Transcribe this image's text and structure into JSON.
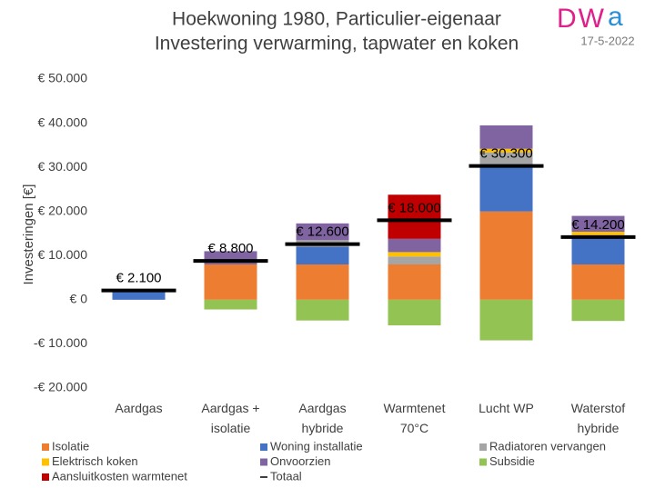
{
  "chart_data": {
    "type": "stacked_bar",
    "title": [
      "Hoekwoning 1980, Particulier-eigenaar",
      "Investering verwarming, tapwater en koken"
    ],
    "logo": [
      "DW",
      "a"
    ],
    "date": "17-5-2022",
    "y_label": "Investeringen [€]",
    "categories": [
      "Aardgas",
      "Aardgas + isolatie",
      "Aardgas hybride",
      "Warmtenet 70°C",
      "Lucht WP",
      "Waterstof hybride"
    ],
    "series": [
      {
        "name": "Isolatie",
        "color": "#ed7d31",
        "values": [
          0,
          8000,
          8000,
          8000,
          20000,
          8000
        ]
      },
      {
        "name": "Woning installatie",
        "color": "#4472c4",
        "values": [
          2100,
          0,
          4000,
          0,
          10000,
          6200
        ]
      },
      {
        "name": "Radiatoren vervangen",
        "color": "#a5a5a5",
        "values": [
          0,
          0,
          1500,
          1800,
          3400,
          0
        ]
      },
      {
        "name": "Elektrisch koken",
        "color": "#ffc000",
        "values": [
          0,
          0,
          0,
          1000,
          800,
          1200
        ]
      },
      {
        "name": "Onvoorzien",
        "color": "#8064a2",
        "values": [
          0,
          3000,
          3800,
          3000,
          5300,
          3600
        ]
      },
      {
        "name": "Subsidie",
        "color": "#92c353",
        "values": [
          0,
          -2200,
          -4700,
          -5800,
          -9200,
          -4800
        ]
      },
      {
        "name": "Aansluitkosten warmtenet",
        "color": "#c00000",
        "values": [
          0,
          0,
          0,
          10000,
          0,
          0
        ]
      }
    ],
    "total": {
      "name": "Totaal",
      "color": "#000000",
      "values": [
        2100,
        8800,
        12600,
        18000,
        30300,
        14200
      ],
      "value_labels": [
        "€ 2.100",
        "€ 8.800",
        "€ 12.600",
        "€ 18.000",
        "€ 30.300",
        "€ 14.200"
      ]
    },
    "ylim": [
      -20000,
      50000
    ],
    "yticks": [
      {
        "value": -20000,
        "label": "-€ 20.000"
      },
      {
        "value": -10000,
        "label": "-€ 10.000"
      },
      {
        "value": 0,
        "label": "€ 0"
      },
      {
        "value": 10000,
        "label": "€ 10.000"
      },
      {
        "value": 20000,
        "label": "€ 20.000"
      },
      {
        "value": 30000,
        "label": "€ 30.000"
      },
      {
        "value": 40000,
        "label": "€ 40.000"
      },
      {
        "value": 50000,
        "label": "€ 50.000"
      }
    ],
    "grid": false
  }
}
